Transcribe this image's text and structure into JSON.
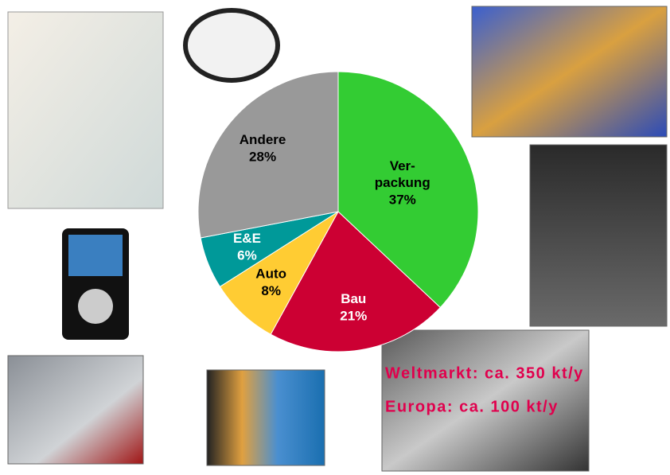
{
  "chart_data": {
    "type": "pie",
    "categories": [
      "Ver-\npackung",
      "Bau",
      "Auto",
      "E&E",
      "Andere"
    ],
    "values": [
      37,
      21,
      8,
      6,
      28
    ],
    "value_labels": [
      "37%",
      "21%",
      "8%",
      "6%",
      "28%"
    ],
    "colors": [
      "#33cc33",
      "#cc0033",
      "#ffcc33",
      "#009999",
      "#999999"
    ],
    "annotations": [
      "Weltmarkt: ca. 350 kt/y",
      "Europa: ca. 100 kt/y"
    ]
  }
}
